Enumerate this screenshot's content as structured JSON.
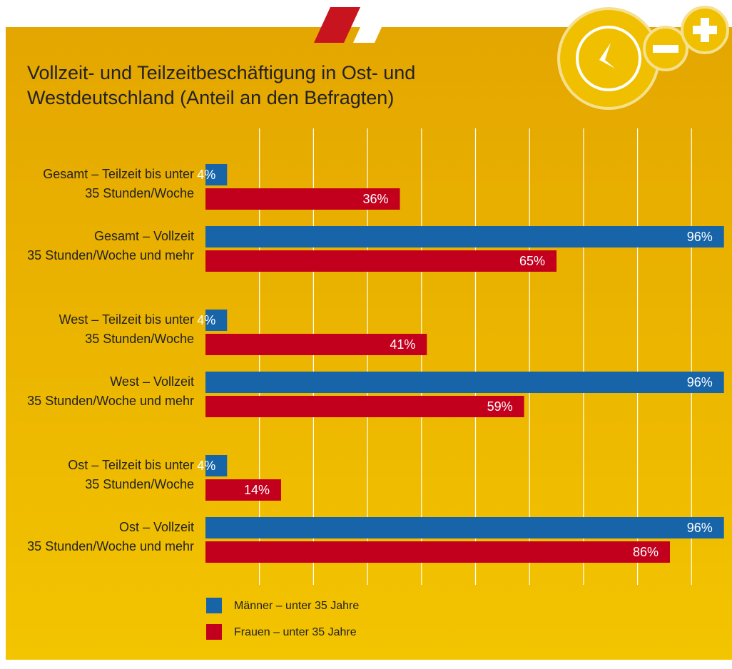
{
  "chart_data": {
    "type": "barh",
    "title": [
      "Vollzeit- und Teilzeitbeschäftigung in Ost- und",
      "Westdeutschland (Anteil an den Befragten)"
    ],
    "categories": [
      [
        "Gesamt – Teilzeit bis unter",
        "35 Stunden/Woche"
      ],
      [
        "Gesamt – Vollzeit",
        "35 Stunden/Woche und mehr"
      ],
      [
        "West – Teilzeit bis unter",
        "35 Stunden/Woche"
      ],
      [
        "West – Vollzeit",
        "35 Stunden/Woche und mehr"
      ],
      [
        "Ost – Teilzeit bis unter",
        "35 Stunden/Woche"
      ],
      [
        "Ost – Vollzeit",
        "35 Stunden/Woche und mehr"
      ]
    ],
    "series": [
      {
        "name": "Männer – unter 35 Jahre",
        "color": "#1764a8",
        "values": [
          4,
          96,
          4,
          96,
          4,
          96
        ],
        "value_labels": [
          "4%",
          "96%",
          "4%",
          "96%",
          "4%",
          "96%"
        ]
      },
      {
        "name": "Frauen – unter 35 Jahre",
        "color": "#c2001e",
        "values": [
          36,
          65,
          41,
          59,
          14,
          86
        ],
        "value_labels": [
          "36%",
          "65%",
          "41%",
          "59%",
          "14%",
          "86%"
        ]
      }
    ],
    "xlim": [
      0,
      100
    ],
    "xticks": [
      10,
      20,
      30,
      40,
      50,
      60,
      70,
      80,
      90
    ],
    "grid": true
  }
}
